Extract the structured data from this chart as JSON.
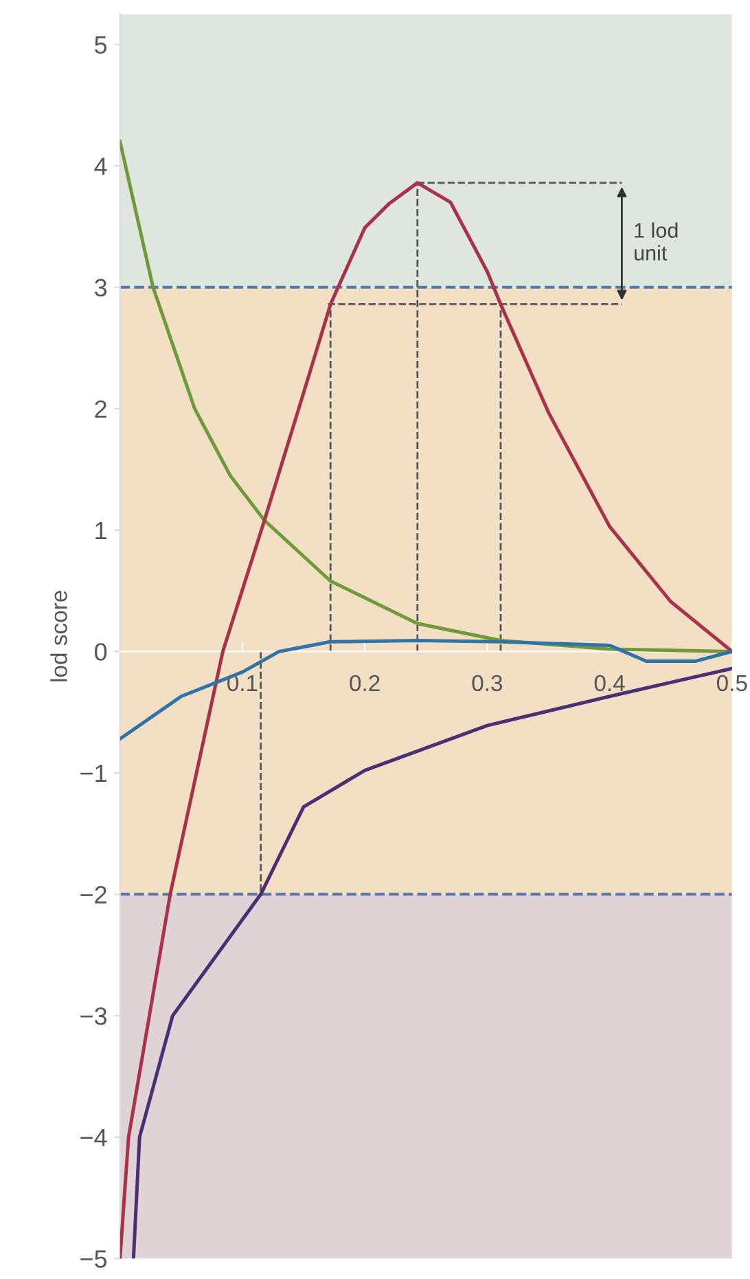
{
  "chart_data": {
    "type": "line",
    "ylabel": "lod score",
    "xlim": [
      0,
      0.5
    ],
    "ylim": [
      -5,
      5.25
    ],
    "xticks": [
      0.1,
      0.2,
      0.3,
      0.4,
      0.5
    ],
    "yticks": [
      {
        "value": -5,
        "label": "−5"
      },
      {
        "value": -4,
        "label": "−4"
      },
      {
        "value": -3,
        "label": "−3"
      },
      {
        "value": -2,
        "label": "−2"
      },
      {
        "value": -1,
        "label": "−1"
      },
      0,
      1,
      2,
      3,
      4,
      5
    ],
    "grid": false,
    "legend": false,
    "marker": "none",
    "series": [
      {
        "color": "#6f9a3a",
        "x": [
          0,
          0.027,
          0.061,
          0.09,
          0.118,
          0.172,
          0.243,
          0.311,
          0.4,
          0.5
        ],
        "values": [
          4.2,
          3.0,
          2.0,
          1.45,
          1.08,
          0.58,
          0.23,
          0.09,
          0.02,
          0
        ]
      },
      {
        "color": "#a8324a",
        "x": [
          0,
          0.007,
          0.024,
          0.041,
          0.084,
          0.118,
          0.15,
          0.172,
          0.2,
          0.22,
          0.243,
          0.27,
          0.3,
          0.311,
          0.35,
          0.4,
          0.45,
          0.5
        ],
        "values": [
          -5,
          -4,
          -3,
          -2,
          0,
          1.08,
          2.13,
          2.86,
          3.49,
          3.69,
          3.86,
          3.7,
          3.13,
          2.86,
          1.97,
          1.03,
          0.41,
          0
        ]
      },
      {
        "color": "#2f73a8",
        "x": [
          0,
          0.05,
          0.1,
          0.13,
          0.172,
          0.243,
          0.311,
          0.4,
          0.43,
          0.47,
          0.5
        ],
        "values": [
          -0.72,
          -0.37,
          -0.17,
          0,
          0.08,
          0.09,
          0.08,
          0.05,
          -0.08,
          -0.08,
          0
        ]
      },
      {
        "color": "#4a2f74",
        "x": [
          0.011,
          0.016,
          0.043,
          0.115,
          0.15,
          0.2,
          0.3,
          0.4,
          0.5
        ],
        "values": [
          -5,
          -4,
          -3,
          -2,
          -1.28,
          -0.98,
          -0.61,
          -0.37,
          -0.14
        ]
      },
      {
        "color": "#555555",
        "line_style": "dashed",
        "x": [
          0.172,
          0.172
        ],
        "values": [
          0,
          2.86
        ]
      },
      {
        "color": "#555555",
        "line_style": "dashed",
        "x": [
          0.243,
          0.243
        ],
        "values": [
          0,
          3.86
        ]
      },
      {
        "color": "#555555",
        "line_style": "dashed",
        "x": [
          0.311,
          0.311
        ],
        "values": [
          0,
          2.86
        ]
      },
      {
        "color": "#555555",
        "line_style": "dashed",
        "x": [
          0.115,
          0.115
        ],
        "values": [
          0,
          -2
        ]
      },
      {
        "color": "#555555",
        "line_style": "dashed",
        "x": [
          0.243,
          0.41
        ],
        "values": [
          3.86,
          3.86
        ]
      },
      {
        "color": "#555555",
        "line_style": "dashed",
        "x": [
          0.17,
          0.41
        ],
        "values": [
          2.86,
          2.86
        ]
      }
    ],
    "ref_lines": [
      {
        "axis": "y",
        "value": 3,
        "color": "#5577aa",
        "line_style": "dashed"
      },
      {
        "axis": "y",
        "value": -2,
        "color": "#5577aa",
        "line_style": "dashed"
      }
    ],
    "bands": [
      {
        "axis": "y",
        "from": 3,
        "to": 5.25,
        "color": "#dfe6df"
      },
      {
        "axis": "y",
        "from": -2,
        "to": 3,
        "color": "#f3dfc3"
      },
      {
        "axis": "y",
        "from": -5,
        "to": -2,
        "color": "#e0d3d5"
      }
    ],
    "annotations": [
      "1 lod\nunit"
    ]
  }
}
